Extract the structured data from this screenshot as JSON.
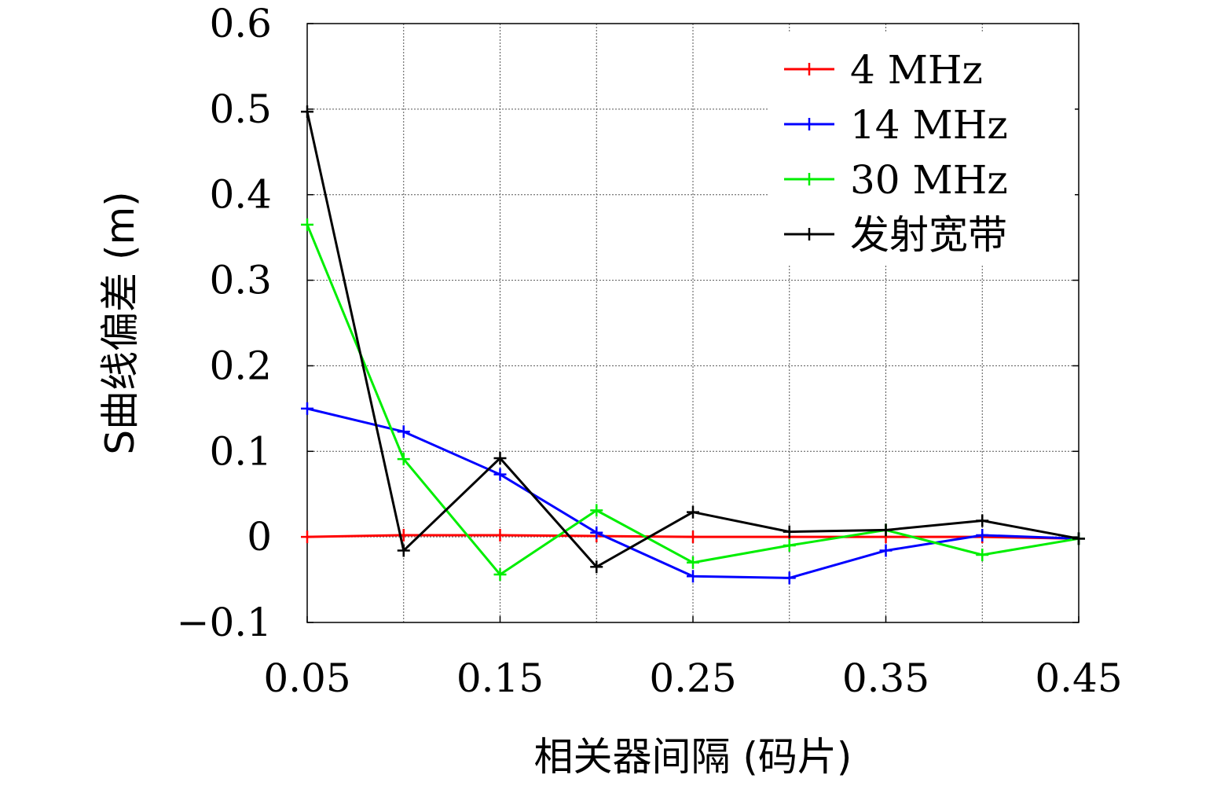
{
  "chart_data": {
    "type": "line",
    "title": "",
    "xlabel": "相关器间隔 (码片)",
    "ylabel": "S曲线偏差 (m)",
    "xlim": [
      0.05,
      0.45
    ],
    "ylim": [
      -0.1,
      0.6
    ],
    "x": [
      0.05,
      0.1,
      0.15,
      0.2,
      0.25,
      0.3,
      0.35,
      0.4,
      0.45
    ],
    "xticks": [
      "0.05",
      "0.15",
      "0.25",
      "0.35",
      "0.45"
    ],
    "xtick_values": [
      0.05,
      0.15,
      0.25,
      0.35,
      0.45
    ],
    "yticks": [
      "−0.1",
      "0",
      "0.1",
      "0.2",
      "0.3",
      "0.4",
      "0.5",
      "0.6"
    ],
    "ytick_values": [
      -0.1,
      0,
      0.1,
      0.2,
      0.3,
      0.4,
      0.5,
      0.6
    ],
    "xgrid_values": [
      0.1,
      0.15,
      0.2,
      0.25,
      0.3,
      0.35,
      0.4
    ],
    "grid": true,
    "legend_position": "top-right",
    "series": [
      {
        "name": "4 MHz",
        "color": "#ff0000",
        "values": [
          0.0,
          0.002,
          0.002,
          0.001,
          0.0,
          0.0,
          0.0,
          0.0,
          -0.002
        ]
      },
      {
        "name": "14 MHz",
        "color": "#0000ff",
        "values": [
          0.15,
          0.123,
          0.073,
          0.005,
          -0.046,
          -0.048,
          -0.016,
          0.002,
          -0.002
        ]
      },
      {
        "name": "30 MHz",
        "color": "#00ee00",
        "values": [
          0.365,
          0.091,
          -0.044,
          0.031,
          -0.03,
          -0.01,
          0.008,
          -0.021,
          -0.002
        ]
      },
      {
        "name": "发射宽带",
        "color": "#000000",
        "values": [
          0.497,
          -0.016,
          0.092,
          -0.035,
          0.029,
          0.006,
          0.008,
          0.019,
          -0.002
        ]
      }
    ]
  }
}
